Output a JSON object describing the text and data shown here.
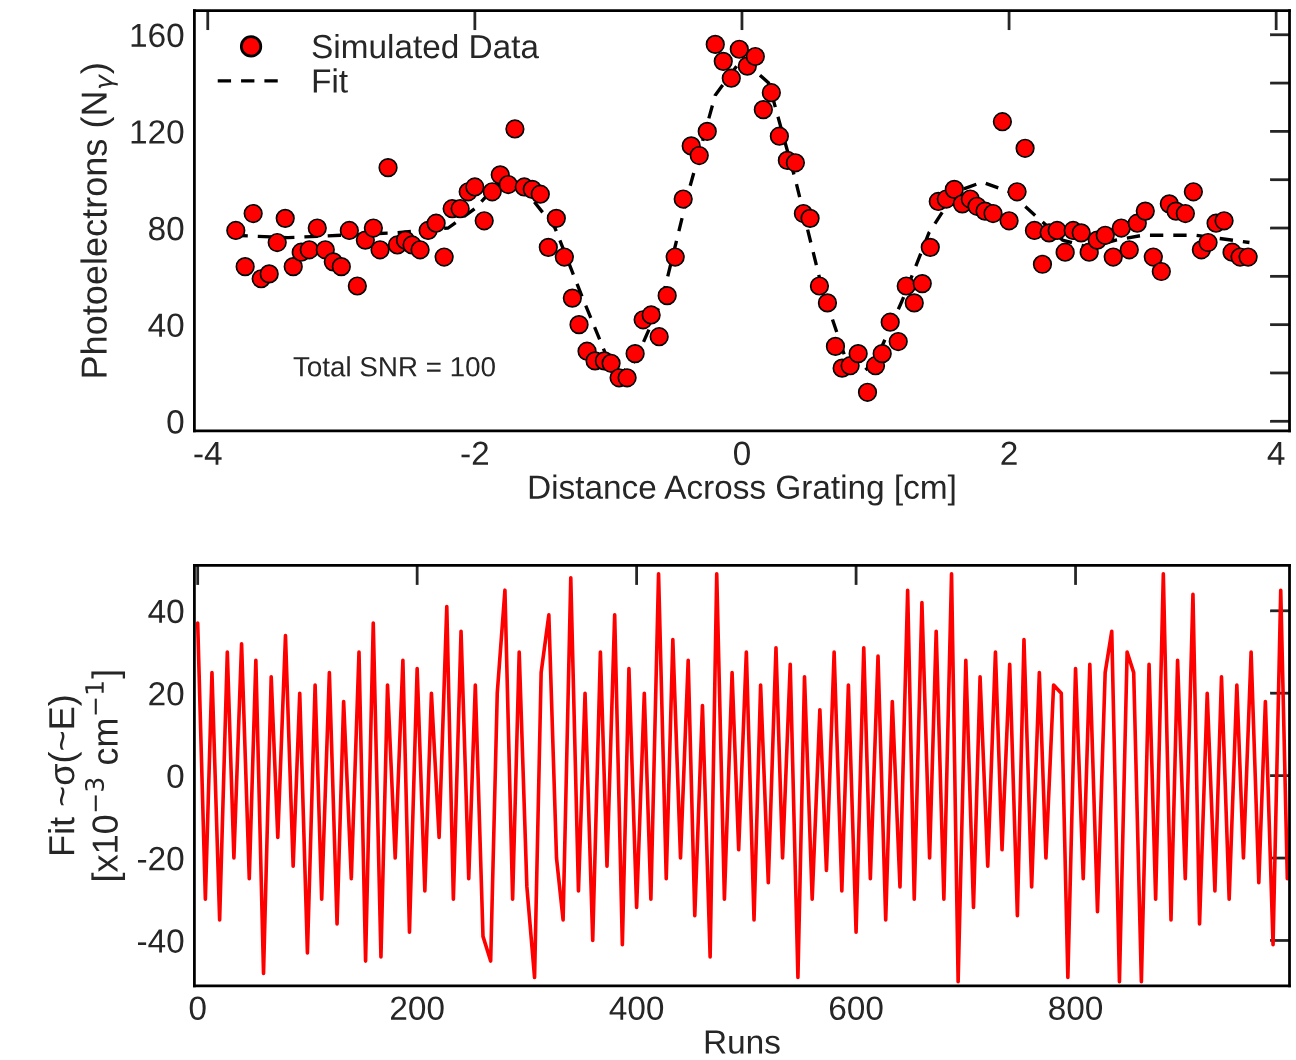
{
  "chart_data": [
    {
      "type": "scatter",
      "xlabel": "Distance Across Grating [cm]",
      "ylabel": "Photoelectrons (N$_{γ}$)",
      "annotations": [
        "Total SNR = 100"
      ],
      "xlim": [
        -4.1,
        4.1
      ],
      "ylim": [
        -4,
        170
      ],
      "xticks": [
        -4,
        -2,
        0,
        2,
        4
      ],
      "yticks": [
        0,
        {
          "value": 20,
          "label": null
        },
        40,
        {
          "value": 60,
          "label": null
        },
        80,
        {
          "value": 100,
          "label": null
        },
        120,
        {
          "value": 140,
          "label": null
        },
        160
      ],
      "grid": false,
      "legend": "top left",
      "series": [
        {
          "name": "Simulated Data",
          "type": "scatter",
          "marker": "circle",
          "color": "#ff0000",
          "x": [
            -3.79,
            -3.72,
            -3.66,
            -3.6,
            -3.54,
            -3.48,
            -3.42,
            -3.36,
            -3.3,
            -3.24,
            -3.18,
            -3.12,
            -3.06,
            -3.0,
            -2.94,
            -2.88,
            -2.82,
            -2.76,
            -2.71,
            -2.65,
            -2.58,
            -2.52,
            -2.47,
            -2.41,
            -2.35,
            -2.29,
            -2.23,
            -2.17,
            -2.11,
            -2.05,
            -2.0,
            -1.93,
            -1.87,
            -1.81,
            -1.75,
            -1.7,
            -1.63,
            -1.57,
            -1.51,
            -1.45,
            -1.39,
            -1.33,
            -1.27,
            -1.22,
            -1.16,
            -1.1,
            -1.03,
            -0.98,
            -0.92,
            -0.86,
            -0.8,
            -0.74,
            -0.68,
            -0.62,
            -0.56,
            -0.5,
            -0.44,
            -0.38,
            -0.32,
            -0.26,
            -0.2,
            -0.14,
            -0.08,
            -0.02,
            0.04,
            0.1,
            0.16,
            0.22,
            0.28,
            0.34,
            0.4,
            0.46,
            0.51,
            0.58,
            0.64,
            0.7,
            0.75,
            0.81,
            0.87,
            0.94,
            1.0,
            1.05,
            1.11,
            1.17,
            1.23,
            1.29,
            1.35,
            1.41,
            1.47,
            1.53,
            1.59,
            1.65,
            1.71,
            1.76,
            1.82,
            1.88,
            1.95,
            2.0,
            2.06,
            2.12,
            2.19,
            2.25,
            2.3,
            2.36,
            2.42,
            2.48,
            2.54,
            2.6,
            2.66,
            2.72,
            2.78,
            2.84,
            2.9,
            2.96,
            3.02,
            3.08,
            3.14,
            3.2,
            3.25,
            3.32,
            3.38,
            3.44,
            3.49,
            3.55,
            3.61,
            3.67,
            3.73,
            3.79
          ],
          "values": [
            79,
            64,
            86,
            59,
            61,
            74,
            84,
            64,
            70,
            71,
            80,
            71,
            66,
            64,
            79,
            56,
            75,
            80,
            71,
            105,
            73,
            75,
            73,
            71,
            79,
            82,
            68,
            88,
            88,
            95,
            97,
            83,
            95,
            102,
            98,
            121,
            97,
            96,
            94,
            72,
            84,
            68,
            51,
            40,
            29,
            25,
            25,
            24,
            18,
            18,
            28,
            42,
            44,
            35,
            52,
            68,
            92,
            114,
            110,
            120,
            156,
            149,
            142,
            154,
            147,
            151,
            129,
            136,
            118,
            108,
            107,
            86,
            84,
            56,
            49,
            31,
            22,
            23,
            28,
            12,
            23,
            28,
            41,
            33,
            56,
            49,
            57,
            72,
            91,
            92,
            96,
            90,
            92,
            89,
            87,
            86,
            124,
            83,
            95,
            113,
            79,
            65,
            78,
            79,
            70,
            79,
            78,
            70,
            75,
            77,
            68,
            80,
            71,
            82,
            87,
            68,
            62,
            90,
            87,
            86,
            95,
            71,
            74,
            82,
            83,
            70,
            68,
            68
          ]
        },
        {
          "name": "Fit",
          "type": "line",
          "line_style": "dashed",
          "color": "#000000",
          "x": [
            -3.8,
            -3.4,
            -3.0,
            -2.6,
            -2.2,
            -2.0,
            -1.8,
            -1.6,
            -1.4,
            -1.2,
            -1.0,
            -0.9,
            -0.8,
            -0.6,
            -0.4,
            -0.2,
            0.0,
            0.2,
            0.4,
            0.6,
            0.8,
            0.9,
            1.0,
            1.2,
            1.4,
            1.6,
            1.8,
            2.0,
            2.2,
            2.4,
            2.6,
            2.8,
            3.0,
            3.4,
            3.8
          ],
          "values": [
            77,
            76,
            77,
            78,
            80,
            88,
            100,
            94,
            80,
            52,
            25,
            20,
            25,
            50,
            95,
            135,
            150,
            140,
            100,
            55,
            22,
            20,
            25,
            50,
            78,
            95,
            99,
            95,
            85,
            75,
            72,
            75,
            77,
            77,
            74
          ]
        }
      ]
    },
    {
      "type": "line",
      "xlabel": "Runs",
      "ylabel": "Fit ~σ(~E)\n[x10$^{−3}$ cm$^{−1}$]",
      "xlim": [
        -3,
        995
      ],
      "ylim": [
        -51,
        51
      ],
      "xticks": [
        0,
        200,
        400,
        600,
        800
      ],
      "yticks": [
        -40,
        -20,
        0,
        20,
        40
      ],
      "grid": false,
      "legend": false,
      "series": [
        {
          "type": "line",
          "line_style": "solid",
          "marker": "none",
          "color": "#ff0000",
          "x": [
            0,
            7,
            13,
            20,
            27,
            33,
            40,
            47,
            53,
            60,
            67,
            73,
            80,
            87,
            93,
            100,
            107,
            113,
            120,
            127,
            133,
            140,
            147,
            153,
            160,
            167,
            173,
            180,
            187,
            193,
            200,
            207,
            213,
            220,
            227,
            233,
            240,
            247,
            253,
            260,
            267,
            273,
            280,
            287,
            293,
            300,
            307,
            313,
            320,
            327,
            333,
            340,
            347,
            353,
            360,
            367,
            373,
            380,
            387,
            393,
            400,
            407,
            413,
            420,
            427,
            433,
            440,
            447,
            453,
            460,
            467,
            473,
            480,
            487,
            493,
            500,
            507,
            513,
            520,
            527,
            533,
            540,
            547,
            553,
            560,
            567,
            573,
            580,
            587,
            593,
            600,
            607,
            613,
            620,
            627,
            633,
            640,
            647,
            653,
            660,
            667,
            673,
            680,
            687,
            693,
            700,
            707,
            713,
            720,
            727,
            733,
            740,
            747,
            753,
            760,
            767,
            773,
            780,
            787,
            793,
            800,
            807,
            813,
            820,
            827,
            833,
            840,
            847,
            853,
            860,
            867,
            873,
            880,
            887,
            893,
            900,
            907,
            913,
            920,
            927,
            933,
            940,
            947,
            953,
            960,
            967,
            973,
            980,
            987,
            993
          ],
          "values": [
            37,
            -30,
            25,
            -35,
            30,
            -20,
            32,
            -25,
            28,
            -48,
            24,
            -15,
            34,
            -22,
            20,
            -43,
            22,
            -30,
            25,
            -36,
            18,
            -25,
            30,
            -45,
            37,
            -44,
            22,
            -20,
            28,
            -38,
            26,
            -28,
            20,
            -15,
            41,
            -30,
            35,
            -25,
            22,
            -39,
            -45,
            20,
            45,
            -30,
            30,
            -27,
            -49,
            25,
            39,
            -20,
            -35,
            48,
            -28,
            20,
            -40,
            30,
            -22,
            39,
            -41,
            26,
            -32,
            20,
            -30,
            49,
            -25,
            33,
            -20,
            28,
            -34,
            17,
            -44,
            49,
            -30,
            25,
            -18,
            30,
            -35,
            22,
            -26,
            31,
            -20,
            27,
            -49,
            24,
            -30,
            16,
            -23,
            30,
            -28,
            22,
            -38,
            31,
            -25,
            29,
            -35,
            18,
            -27,
            45,
            -30,
            42,
            -20,
            35,
            -30,
            49,
            -50,
            28,
            -32,
            24,
            -22,
            30,
            -18,
            27,
            -34,
            33,
            -27,
            25,
            -20,
            22,
            20,
            -49,
            26,
            -25,
            27,
            -33,
            25,
            35,
            -50,
            30,
            25,
            -50,
            27,
            -30,
            49,
            -35,
            28,
            -25,
            44,
            -36,
            20,
            -28,
            24,
            -30,
            22,
            -20,
            30,
            -26,
            18,
            -41,
            45,
            -25
          ]
        }
      ]
    }
  ]
}
